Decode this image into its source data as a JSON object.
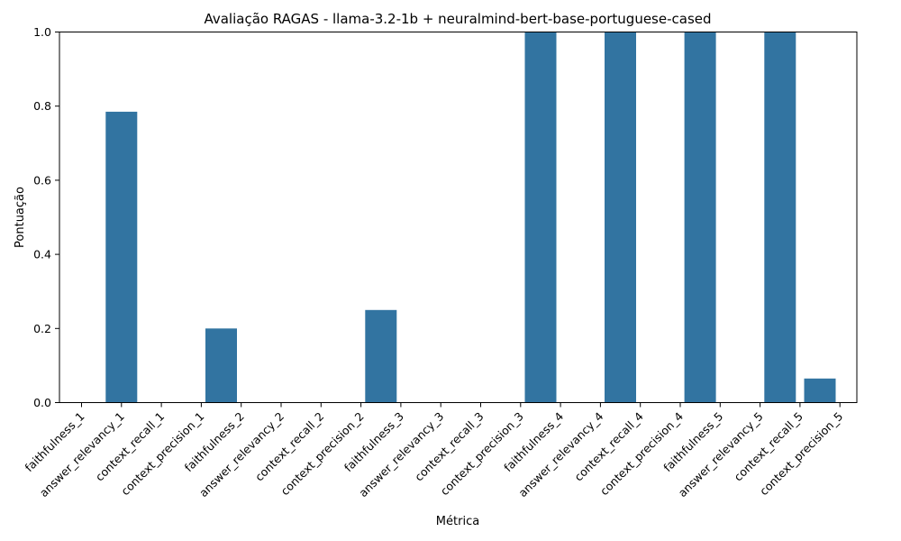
{
  "chart_data": {
    "type": "bar",
    "title": "Avaliação RAGAS - llama-3.2-1b + neuralmind-bert-base-portuguese-cased",
    "xlabel": "Métrica",
    "ylabel": "Pontuação",
    "ylim": [
      0,
      1.0
    ],
    "yticks": [
      "0.0",
      "0.2",
      "0.4",
      "0.6",
      "0.8",
      "1.0"
    ],
    "bar_color": "#3274a1",
    "grid": false,
    "categories": [
      "faithfulness_1",
      "answer_relevancy_1",
      "context_recall_1",
      "context_precision_1",
      "faithfulness_2",
      "answer_relevancy_2",
      "context_recall_2",
      "context_precision_2",
      "faithfulness_3",
      "answer_relevancy_3",
      "context_recall_3",
      "context_precision_3",
      "faithfulness_4",
      "answer_relevancy_4",
      "context_recall_4",
      "context_precision_4",
      "faithfulness_5",
      "answer_relevancy_5",
      "context_recall_5",
      "context_precision_5"
    ],
    "values": [
      0,
      0.785,
      0,
      0,
      0.2,
      0,
      0,
      0,
      0.25,
      0,
      0,
      0,
      1.0,
      0,
      1.0,
      0,
      1.0,
      0,
      1.0,
      0.065
    ],
    "x_positions": [
      0,
      1,
      2,
      3,
      4,
      5,
      6,
      7,
      8,
      9,
      10,
      11,
      12,
      13,
      14,
      15,
      16,
      17,
      18,
      19
    ],
    "bar_positions": [
      0,
      1,
      2,
      3,
      3.5,
      4.5,
      5.5,
      6.5,
      7.5,
      8.5,
      9.5,
      10.5,
      11.5,
      12.5,
      13.5,
      14.5,
      15.5,
      16.5,
      17.5,
      18.5
    ]
  }
}
